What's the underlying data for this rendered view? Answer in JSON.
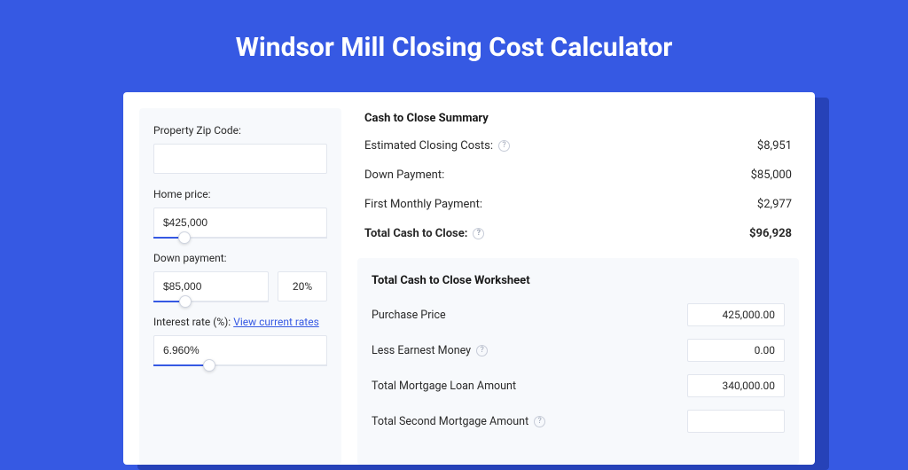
{
  "colors": {
    "page_bg": "#3659e3",
    "shadow": "#2642b8",
    "card_bg": "#ffffff",
    "panel_bg": "#f7f9fc",
    "border": "#e2e6ee",
    "text": "#2a2a2a",
    "link": "#3659e3",
    "slider_track": "#e2e6ee",
    "slider_fill": "#3659e3"
  },
  "title": "Windsor Mill Closing Cost Calculator",
  "form": {
    "zip": {
      "label": "Property Zip Code:",
      "value": ""
    },
    "home_price": {
      "label": "Home price:",
      "value": "$425,000",
      "slider_pct": 18
    },
    "down_payment": {
      "label": "Down payment:",
      "value": "$85,000",
      "pct_value": "20%",
      "slider_pct": 28
    },
    "interest_rate": {
      "label": "Interest rate (%):",
      "link_text": "View current rates",
      "value": "6.960%",
      "slider_pct": 32
    }
  },
  "summary": {
    "title": "Cash to Close Summary",
    "rows": [
      {
        "label": "Estimated Closing Costs:",
        "value": "$8,951",
        "help": true
      },
      {
        "label": "Down Payment:",
        "value": "$85,000",
        "help": false
      },
      {
        "label": "First Monthly Payment:",
        "value": "$2,977",
        "help": false
      }
    ],
    "total": {
      "label": "Total Cash to Close:",
      "value": "$96,928",
      "help": true
    }
  },
  "worksheet": {
    "title": "Total Cash to Close Worksheet",
    "rows": [
      {
        "label": "Purchase Price",
        "value": "425,000.00",
        "help": false
      },
      {
        "label": "Less Earnest Money",
        "value": "0.00",
        "help": true
      },
      {
        "label": "Total Mortgage Loan Amount",
        "value": "340,000.00",
        "help": false
      },
      {
        "label": "Total Second Mortgage Amount",
        "value": "",
        "help": true
      }
    ]
  }
}
